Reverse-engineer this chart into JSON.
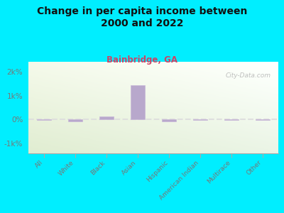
{
  "title": "Change in per capita income between\n2000 and 2022",
  "subtitle": "Bainbridge, GA",
  "categories": [
    "All",
    "White",
    "Black",
    "Asian",
    "Hispanic",
    "American Indian",
    "Multirace",
    "Other"
  ],
  "values": [
    -30,
    -60,
    120,
    1420,
    -80,
    -25,
    -15,
    -10
  ],
  "bar_color": "#b8a8cc",
  "bar_edge_color": "#c8b8d8",
  "outer_bg": "#00eeff",
  "title_color": "#111111",
  "subtitle_color": "#cc4466",
  "tick_label_color": "#777777",
  "ytick_labels": [
    "-1k%",
    "0%",
    "1k%",
    "2k%"
  ],
  "yticks": [
    -1000,
    0,
    1000,
    2000
  ],
  "ylim": [
    -1400,
    2400
  ],
  "watermark": "City-Data.com",
  "dashed_line_color": "#dddddd"
}
